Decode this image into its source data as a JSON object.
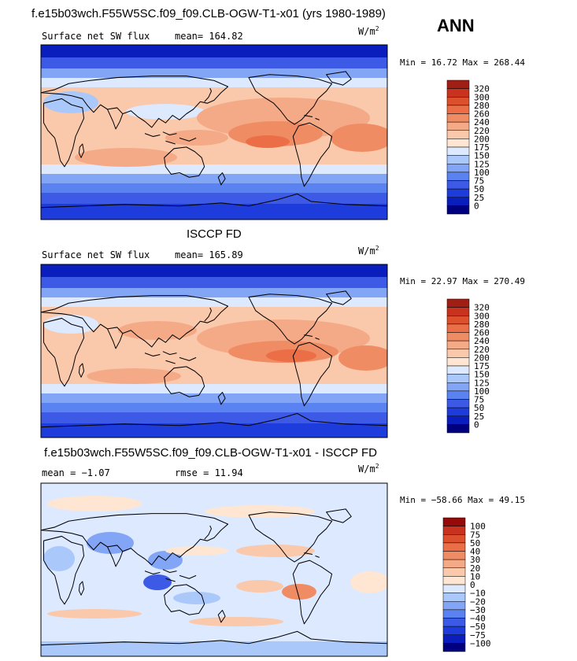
{
  "header": {
    "case_title": "f.e15b03wch.F55W5SC.f09_f09.CLB-OGW-T1-x01 (yrs 1980-1989)",
    "season": "ANN"
  },
  "units": {
    "w": "W/m",
    "exp": "2"
  },
  "colors": {
    "scale1": [
      "#00007f",
      "#0a1ebe",
      "#1e3cdc",
      "#3c5ae6",
      "#5a82f0",
      "#82a5f5",
      "#aac8fa",
      "#dce9ff",
      "#ffe6d2",
      "#fac8aa",
      "#f5aa87",
      "#f08c64",
      "#eb6e46",
      "#dc502d",
      "#c8321e",
      "#a01e14"
    ],
    "scale2": [
      "#00007f",
      "#0a1ebe",
      "#1e3cdc",
      "#3c5ae6",
      "#5a82f0",
      "#82a5f5",
      "#aac8fa",
      "#dce9ff",
      "#ffe6d2",
      "#fac8aa",
      "#f5aa87",
      "#f08c64",
      "#eb6e46",
      "#dc502d",
      "#c8321e",
      "#960a0a"
    ],
    "land": "#000000"
  },
  "panels": [
    {
      "left_label": "Surface net SW flux",
      "stat_label": "mean= 164.82",
      "minmax": "Min =  16.72 Max = 268.44",
      "labelbar": [
        "320",
        "300",
        "280",
        "260",
        "240",
        "220",
        "200",
        "175",
        "150",
        "125",
        "100",
        "75",
        "50",
        "25",
        "0"
      ]
    },
    {
      "title": "ISCCP FD",
      "left_label": "Surface net SW flux",
      "stat_label": "mean= 165.89",
      "minmax": "Min =  22.97 Max = 270.49",
      "labelbar": [
        "320",
        "300",
        "280",
        "260",
        "240",
        "220",
        "200",
        "175",
        "150",
        "125",
        "100",
        "75",
        "50",
        "25",
        "0"
      ]
    },
    {
      "title": "f.e15b03wch.F55W5SC.f09_f09.CLB-OGW-T1-x01 - ISCCP FD",
      "left_label": "mean =  −1.07",
      "stat_label": "rmse =  11.94",
      "minmax": "Min = −58.66 Max =  49.15",
      "labelbar": [
        "100",
        "75",
        "50",
        "40",
        "30",
        "20",
        "10",
        "0",
        "−10",
        "−20",
        "−30",
        "−40",
        "−50",
        "−75",
        "−100"
      ]
    }
  ]
}
